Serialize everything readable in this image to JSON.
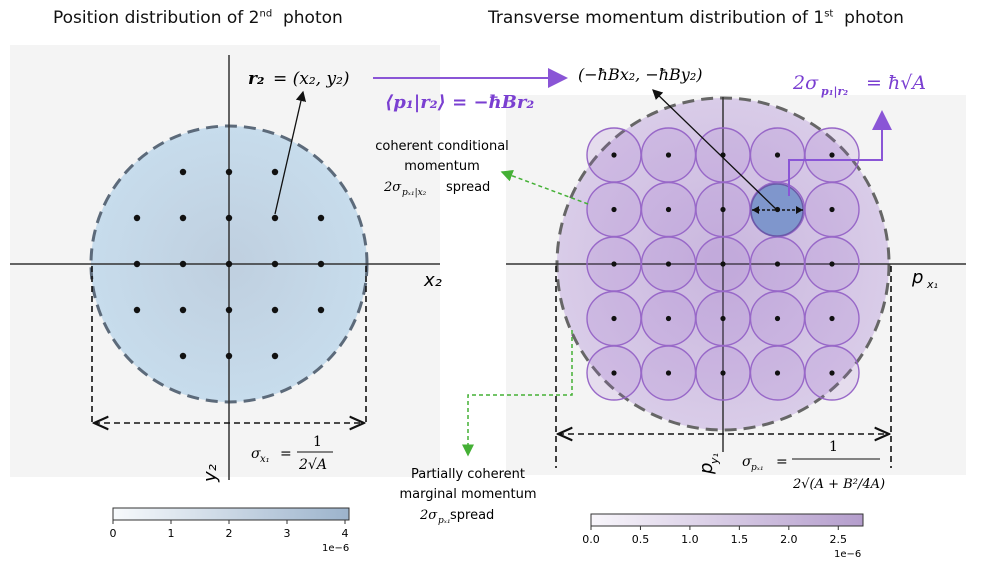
{
  "left_panel": {
    "title": "Position distribution of 2",
    "title_sup": "nd",
    "title_suffix": "  photon",
    "x_axis_label": "x₂",
    "y_axis_label": "y₂",
    "point_label_lhs": "r₂",
    "point_label_rhs": "=  (x₂, y₂)",
    "width_label_lhs": "σ",
    "width_label_sub": "x₁",
    "width_label_num": "1",
    "width_label_den": "2√A",
    "colorbar": {
      "ticks": [
        "0",
        "1",
        "2",
        "3",
        "4"
      ],
      "exponent": "1e−6",
      "color_low": "#f4f8fb",
      "color_high": "#9db4cc"
    }
  },
  "right_panel": {
    "title": "Transverse momentum distribution of 1",
    "title_sup": "st",
    "title_suffix": "  photon",
    "x_axis_label": "p",
    "x_axis_sub": "x₁",
    "y_axis_label": "p",
    "y_axis_sub": "y₁",
    "mean_point_label": "(−ħBx₂, −ħBy₂)",
    "conditional_mean_label": "⟨p₁|r₂⟩ = −ħBr₂",
    "conditional_width_label": "2σ",
    "conditional_width_sub": "p₁|r₂",
    "conditional_width_rhs": "= ħ√A",
    "width_label_lhs": "σ",
    "width_label_sub": "pₓ₁",
    "width_label_num": "1",
    "width_label_den": "2√(A + B²/4A)",
    "colorbar": {
      "ticks": [
        "0.0",
        "0.5",
        "1.0",
        "1.5",
        "2.0",
        "2.5"
      ],
      "exponent": "1e−6",
      "color_low": "#f6f3fa",
      "color_high": "#b9a4d0"
    }
  },
  "annotations": {
    "coherent_line1": "coherent conditional",
    "coherent_line2": "momentum",
    "coherent_line3_lhs": "2σ",
    "coherent_line3_sub": "pₓ₁|x₂",
    "coherent_line3_rhs": " spread",
    "partial_line1": "Partially coherent",
    "partial_line2": "marginal momentum",
    "partial_line3_lhs": "2σ",
    "partial_line3_sub": "pₓ₁",
    "partial_line3_rhs": " spread"
  },
  "colors": {
    "purple_accent": "#7a3fd1",
    "green_arrow": "#44b035",
    "highlight_disk": "#7f96cc",
    "circle_stroke": "#9868c8"
  }
}
